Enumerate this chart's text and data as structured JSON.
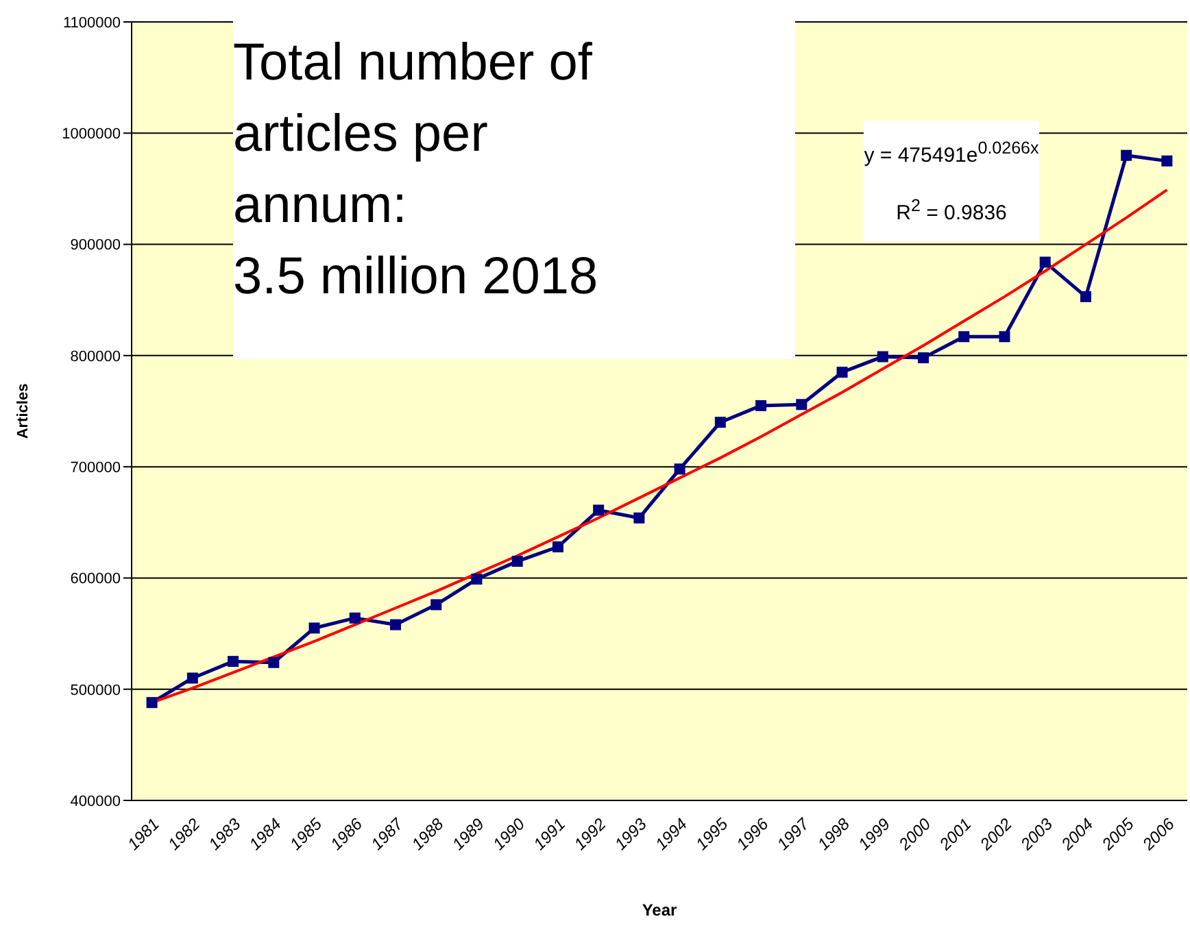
{
  "chart_data": {
    "type": "line",
    "xlabel": "Year",
    "ylabel": "Articles",
    "categories": [
      "1981",
      "1982",
      "1983",
      "1984",
      "1985",
      "1986",
      "1987",
      "1988",
      "1989",
      "1990",
      "1991",
      "1992",
      "1993",
      "1994",
      "1995",
      "1996",
      "1997",
      "1998",
      "1999",
      "2000",
      "2001",
      "2002",
      "2003",
      "2004",
      "2005",
      "2006"
    ],
    "series": [
      {
        "color": "#000080",
        "marker": "square",
        "values": [
          488000,
          510000,
          525000,
          524000,
          555000,
          564000,
          558000,
          576000,
          599000,
          615000,
          628000,
          661000,
          654000,
          698000,
          740000,
          755000,
          756000,
          785000,
          799000,
          798000,
          817000,
          817000,
          884000,
          853000,
          980000,
          975000
        ]
      },
      {
        "color": "#ff0000",
        "marker": "none",
        "values": [
          488000,
          501000,
          515000,
          529000,
          543000,
          558000,
          573000,
          588000,
          604000,
          620000,
          637000,
          654000,
          672000,
          690000,
          708000,
          727000,
          747000,
          767000,
          788000,
          809000,
          831000,
          853000,
          876000,
          900000,
          924000,
          949000
        ]
      }
    ],
    "ylim": [
      400000,
      1100000
    ],
    "yticks": [
      400000,
      500000,
      600000,
      700000,
      800000,
      900000,
      1000000,
      1100000
    ],
    "grid": "y",
    "annotations": [
      "Total number of\narticles per\nannum:\n3.5 million 2018",
      "y = 475491e$^{0.0266x}$",
      "R$^{2}$ = 0.9836"
    ]
  }
}
